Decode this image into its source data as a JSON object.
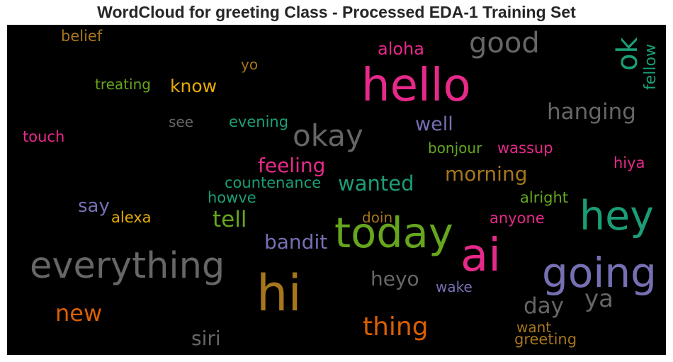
{
  "title": "WordCloud for greeting Class - Processed EDA-1 Training Set",
  "words": [
    {
      "text": "hello",
      "color": "#e7298a",
      "rotated": false
    },
    {
      "text": "good",
      "color": "#666666",
      "rotated": false
    },
    {
      "text": "ok",
      "color": "#1b9e77",
      "rotated": true
    },
    {
      "text": "fellow",
      "color": "#1b9e77",
      "rotated": true
    },
    {
      "text": "belief",
      "color": "#a6761d",
      "rotated": false
    },
    {
      "text": "aloha",
      "color": "#e7298a",
      "rotated": false
    },
    {
      "text": "yo",
      "color": "#a6761d",
      "rotated": false
    },
    {
      "text": "treating",
      "color": "#66a61e",
      "rotated": false
    },
    {
      "text": "know",
      "color": "#e6ab02",
      "rotated": false
    },
    {
      "text": "hanging",
      "color": "#666666",
      "rotated": false
    },
    {
      "text": "see",
      "color": "#666666",
      "rotated": false
    },
    {
      "text": "evening",
      "color": "#1b9e77",
      "rotated": false
    },
    {
      "text": "well",
      "color": "#7570b3",
      "rotated": false
    },
    {
      "text": "okay",
      "color": "#666666",
      "rotated": false
    },
    {
      "text": "touch",
      "color": "#e7298a",
      "rotated": false
    },
    {
      "text": "bonjour",
      "color": "#66a61e",
      "rotated": false
    },
    {
      "text": "wassup",
      "color": "#e7298a",
      "rotated": false
    },
    {
      "text": "feeling",
      "color": "#e7298a",
      "rotated": false
    },
    {
      "text": "hiya",
      "color": "#e7298a",
      "rotated": false
    },
    {
      "text": "morning",
      "color": "#a6761d",
      "rotated": false
    },
    {
      "text": "countenance",
      "color": "#1b9e77",
      "rotated": false
    },
    {
      "text": "wanted",
      "color": "#1b9e77",
      "rotated": false
    },
    {
      "text": "howve",
      "color": "#1b9e77",
      "rotated": false
    },
    {
      "text": "alright",
      "color": "#66a61e",
      "rotated": false
    },
    {
      "text": "say",
      "color": "#7570b3",
      "rotated": false
    },
    {
      "text": "alexa",
      "color": "#e6ab02",
      "rotated": false
    },
    {
      "text": "tell",
      "color": "#66a61e",
      "rotated": false
    },
    {
      "text": "doin",
      "color": "#a6761d",
      "rotated": false
    },
    {
      "text": "anyone",
      "color": "#e7298a",
      "rotated": false
    },
    {
      "text": "hey",
      "color": "#1b9e77",
      "rotated": false
    },
    {
      "text": "today",
      "color": "#66a61e",
      "rotated": false
    },
    {
      "text": "bandit",
      "color": "#7570b3",
      "rotated": false
    },
    {
      "text": "ai",
      "color": "#e7298a",
      "rotated": false
    },
    {
      "text": "everything",
      "color": "#666666",
      "rotated": false
    },
    {
      "text": "going",
      "color": "#7570b3",
      "rotated": false
    },
    {
      "text": "hi",
      "color": "#a6761d",
      "rotated": false
    },
    {
      "text": "heyo",
      "color": "#666666",
      "rotated": false
    },
    {
      "text": "wake",
      "color": "#7570b3",
      "rotated": false
    },
    {
      "text": "ya",
      "color": "#666666",
      "rotated": false
    },
    {
      "text": "day",
      "color": "#666666",
      "rotated": false
    },
    {
      "text": "new",
      "color": "#d95f02",
      "rotated": false
    },
    {
      "text": "thing",
      "color": "#d95f02",
      "rotated": false
    },
    {
      "text": "want",
      "color": "#a6761d",
      "rotated": false
    },
    {
      "text": "siri",
      "color": "#666666",
      "rotated": false
    },
    {
      "text": "greeting",
      "color": "#a6761d",
      "rotated": false
    }
  ]
}
